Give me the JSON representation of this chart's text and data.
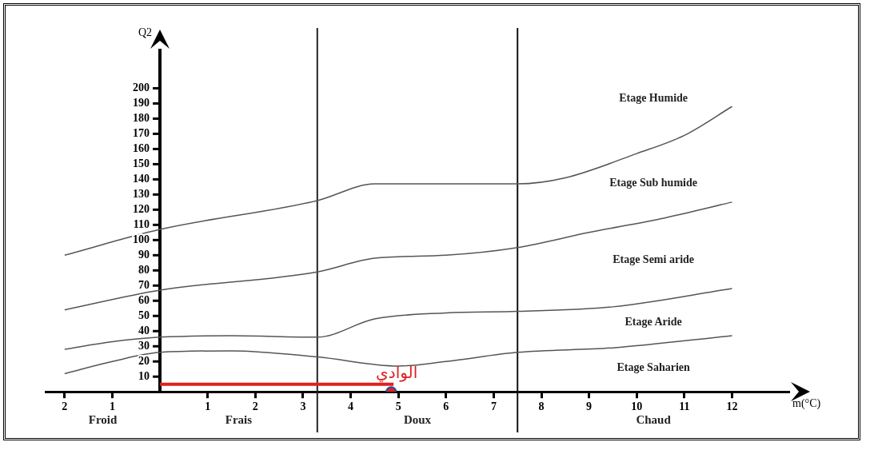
{
  "chart_data": {
    "type": "line",
    "xlabel": "m(°C)",
    "ylabel": "Q2",
    "xlim": [
      -2.4,
      13.2
    ],
    "ylim": [
      0,
      225
    ],
    "xticks": [
      {
        "value": -2,
        "label": "2"
      },
      {
        "value": -1,
        "label": "1"
      },
      1,
      2,
      3,
      4,
      5,
      6,
      7,
      8,
      9,
      10,
      11,
      12
    ],
    "yticks": [
      10,
      20,
      30,
      40,
      50,
      60,
      70,
      80,
      90,
      100,
      110,
      120,
      130,
      140,
      150,
      160,
      170,
      180,
      190,
      200
    ],
    "series": [
      {
        "color": "#555555",
        "x": [
          -2,
          0,
          3.3,
          4.5,
          6,
          7.5,
          8.5,
          10,
          11,
          12
        ],
        "values": [
          90,
          107,
          126,
          137,
          137,
          137,
          141,
          157,
          169,
          188
        ]
      },
      {
        "color": "#555555",
        "x": [
          -2,
          0,
          3.3,
          4.5,
          6,
          7.5,
          9,
          10.5,
          12
        ],
        "values": [
          54,
          67,
          79,
          88,
          90,
          95,
          105,
          114,
          125
        ]
      },
      {
        "color": "#555555",
        "x": [
          -2,
          -1,
          0,
          1.5,
          3.3,
          4.5,
          6,
          7.5,
          9.5,
          12
        ],
        "values": [
          28,
          33,
          36,
          37,
          36,
          48,
          52,
          53,
          56,
          68
        ]
      },
      {
        "color": "#555555",
        "x": [
          -2,
          -1,
          0,
          1.5,
          3.3,
          5,
          6,
          7.5,
          9.5,
          12
        ],
        "values": [
          12,
          20,
          26,
          27,
          23,
          17,
          20,
          26,
          29,
          37
        ]
      },
      {
        "name": "الوادي",
        "color": "#e02020",
        "x": [
          0,
          4.9
        ],
        "values": [
          5,
          5
        ]
      },
      {
        "type": "scatter",
        "marker": "circle",
        "color": "#2050a0",
        "x": [
          4.85
        ],
        "values": [
          0
        ]
      }
    ],
    "ref_lines": [
      {
        "axis": "x",
        "value": 3.3,
        "color": "#222222"
      },
      {
        "axis": "x",
        "value": 7.5,
        "color": "#111111"
      }
    ],
    "annotations": [
      "Etage Humide",
      "Etage Sub humide",
      "Etage Semi aride",
      "Etage Aride",
      "Etage Saharien",
      "Froid",
      "Frais",
      "Doux",
      "Chaud"
    ]
  }
}
